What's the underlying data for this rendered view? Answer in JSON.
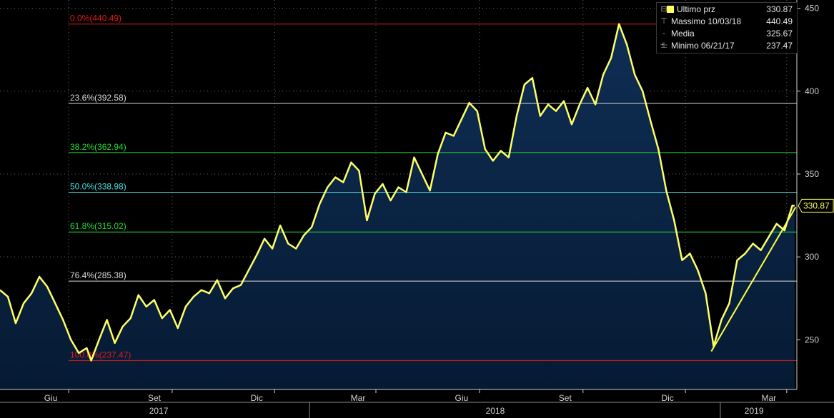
{
  "chart_data": {
    "type": "area",
    "title": "",
    "xlabel": "",
    "ylabel": "",
    "ylim": [
      220,
      455
    ],
    "x_range": [
      "2017-04-01",
      "2019-03-10"
    ],
    "y_ticks": [
      "250",
      "300",
      "350",
      "400",
      "450"
    ],
    "x_month_ticks": [
      {
        "label": "Giu",
        "date": "2017-06-01"
      },
      {
        "label": "Set",
        "date": "2017-09-01"
      },
      {
        "label": "Dic",
        "date": "2017-12-01"
      },
      {
        "label": "Mar",
        "date": "2018-03-01"
      },
      {
        "label": "Giu",
        "date": "2018-06-01"
      },
      {
        "label": "Set",
        "date": "2018-09-01"
      },
      {
        "label": "Dic",
        "date": "2018-12-01"
      },
      {
        "label": "Mar",
        "date": "2019-03-01"
      }
    ],
    "x_year_labels": [
      {
        "label": "2017",
        "date": "2017-08-20"
      },
      {
        "label": "2018",
        "date": "2018-06-15"
      },
      {
        "label": "2019",
        "date": "2019-01-31"
      }
    ],
    "x_year_dividers": [
      "2018-01-01",
      "2019-01-01"
    ],
    "series": [
      {
        "name": "Ultimo prz",
        "color": "#ffff66",
        "points": [
          [
            "2017-04-01",
            280
          ],
          [
            "2017-04-08",
            276
          ],
          [
            "2017-04-15",
            260
          ],
          [
            "2017-04-22",
            272
          ],
          [
            "2017-04-29",
            278
          ],
          [
            "2017-05-06",
            288
          ],
          [
            "2017-05-13",
            282
          ],
          [
            "2017-05-20",
            272
          ],
          [
            "2017-05-27",
            262
          ],
          [
            "2017-06-03",
            250
          ],
          [
            "2017-06-10",
            242
          ],
          [
            "2017-06-17",
            245
          ],
          [
            "2017-06-21",
            237.47
          ],
          [
            "2017-06-28",
            250
          ],
          [
            "2017-07-05",
            262
          ],
          [
            "2017-07-12",
            248
          ],
          [
            "2017-07-19",
            258
          ],
          [
            "2017-07-26",
            263
          ],
          [
            "2017-08-02",
            277
          ],
          [
            "2017-08-09",
            270
          ],
          [
            "2017-08-16",
            274
          ],
          [
            "2017-08-23",
            263
          ],
          [
            "2017-08-30",
            268
          ],
          [
            "2017-09-06",
            257
          ],
          [
            "2017-09-13",
            270
          ],
          [
            "2017-09-20",
            276
          ],
          [
            "2017-09-27",
            280
          ],
          [
            "2017-10-04",
            278
          ],
          [
            "2017-10-11",
            286
          ],
          [
            "2017-10-18",
            275
          ],
          [
            "2017-10-25",
            281
          ],
          [
            "2017-11-01",
            283
          ],
          [
            "2017-11-08",
            292
          ],
          [
            "2017-11-15",
            301
          ],
          [
            "2017-11-22",
            311
          ],
          [
            "2017-11-29",
            305
          ],
          [
            "2017-12-06",
            319
          ],
          [
            "2017-12-13",
            308
          ],
          [
            "2017-12-20",
            305
          ],
          [
            "2017-12-27",
            313
          ],
          [
            "2018-01-03",
            318
          ],
          [
            "2018-01-10",
            332
          ],
          [
            "2018-01-17",
            342
          ],
          [
            "2018-01-24",
            348
          ],
          [
            "2018-01-31",
            345
          ],
          [
            "2018-02-07",
            357
          ],
          [
            "2018-02-14",
            352
          ],
          [
            "2018-02-21",
            322
          ],
          [
            "2018-02-28",
            338
          ],
          [
            "2018-03-07",
            344
          ],
          [
            "2018-03-14",
            334
          ],
          [
            "2018-03-21",
            342
          ],
          [
            "2018-03-28",
            339
          ],
          [
            "2018-04-04",
            360
          ],
          [
            "2018-04-11",
            350
          ],
          [
            "2018-04-18",
            340
          ],
          [
            "2018-04-25",
            362
          ],
          [
            "2018-05-02",
            375
          ],
          [
            "2018-05-09",
            373
          ],
          [
            "2018-05-16",
            383
          ],
          [
            "2018-05-23",
            393
          ],
          [
            "2018-05-30",
            388
          ],
          [
            "2018-06-06",
            365
          ],
          [
            "2018-06-13",
            358
          ],
          [
            "2018-06-20",
            364
          ],
          [
            "2018-06-27",
            360
          ],
          [
            "2018-07-04",
            385
          ],
          [
            "2018-07-11",
            404
          ],
          [
            "2018-07-18",
            408
          ],
          [
            "2018-07-25",
            385
          ],
          [
            "2018-08-01",
            392
          ],
          [
            "2018-08-08",
            388
          ],
          [
            "2018-08-15",
            394
          ],
          [
            "2018-08-22",
            380
          ],
          [
            "2018-08-29",
            392
          ],
          [
            "2018-09-05",
            402
          ],
          [
            "2018-09-12",
            392
          ],
          [
            "2018-09-19",
            410
          ],
          [
            "2018-09-26",
            420
          ],
          [
            "2018-10-03",
            440.49
          ],
          [
            "2018-10-10",
            428
          ],
          [
            "2018-10-17",
            410
          ],
          [
            "2018-10-24",
            400
          ],
          [
            "2018-10-31",
            382
          ],
          [
            "2018-11-07",
            365
          ],
          [
            "2018-11-14",
            340
          ],
          [
            "2018-11-21",
            322
          ],
          [
            "2018-11-28",
            298
          ],
          [
            "2018-12-05",
            302
          ],
          [
            "2018-12-12",
            292
          ],
          [
            "2018-12-19",
            278
          ],
          [
            "2018-12-26",
            246
          ],
          [
            "2019-01-02",
            262
          ],
          [
            "2019-01-09",
            272
          ],
          [
            "2019-01-16",
            298
          ],
          [
            "2019-01-23",
            302
          ],
          [
            "2019-01-30",
            308
          ],
          [
            "2019-02-06",
            304
          ],
          [
            "2019-02-13",
            312
          ],
          [
            "2019-02-20",
            320
          ],
          [
            "2019-02-27",
            316
          ],
          [
            "2019-03-06",
            331
          ],
          [
            "2019-03-08",
            330.87
          ]
        ]
      }
    ],
    "trendline": {
      "color": "#ffff44",
      "points": [
        [
          "2018-12-24",
          243
        ],
        [
          "2019-03-09",
          330
        ]
      ]
    },
    "last_value": 330.87,
    "last_value_label": "330.87",
    "fib_levels": [
      {
        "label": "0.0%(440.49)",
        "value": 440.49,
        "color": "#e01b1b"
      },
      {
        "label": "23.6%(392.58)",
        "value": 392.58,
        "color": "#d9d9d9"
      },
      {
        "label": "38.2%(362.94)",
        "value": 362.94,
        "color": "#22dd33"
      },
      {
        "label": "50.0%(338.98)",
        "value": 338.98,
        "color": "#44dddd"
      },
      {
        "label": "61.8%(315.02)",
        "value": 315.02,
        "color": "#22dd33"
      },
      {
        "label": "76.4%(285.38)",
        "value": 285.38,
        "color": "#d9d9d9"
      },
      {
        "label": "100.0%(237.47)",
        "value": 237.47,
        "color": "#e01b1b"
      }
    ],
    "legend": {
      "placement": "top-right",
      "items": [
        {
          "marker": "",
          "name": "Ultimo prz",
          "value": "330.87"
        },
        {
          "marker": "⊤",
          "name": "Massimo 10/03/18",
          "value": "440.49"
        },
        {
          "marker": "-+-",
          "name": "Media",
          "value": "325.67"
        },
        {
          "marker": "⊥",
          "name": "Minimo 06/21/17",
          "value": "237.47"
        }
      ]
    },
    "grid": true
  }
}
